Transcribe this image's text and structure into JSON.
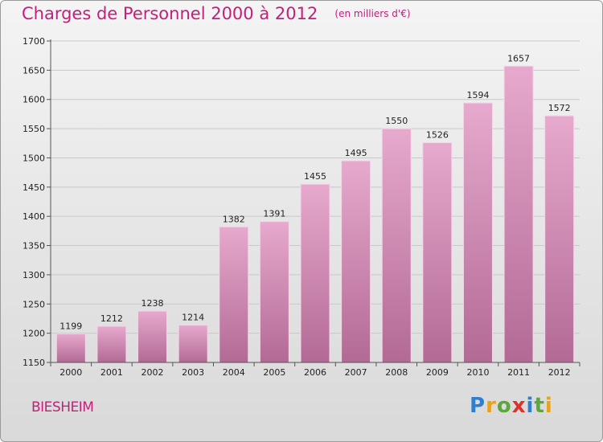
{
  "header": {
    "title": "Charges de Personnel 2000 à 2012",
    "subtitle": "(en milliers d'€)"
  },
  "footer": {
    "commune": "BIESHEIM",
    "logo_text": "Proxiti",
    "logo_letters": [
      {
        "ch": "P",
        "color": "#2f7fd0"
      },
      {
        "ch": "r",
        "color": "#e8a21c"
      },
      {
        "ch": "o",
        "color": "#5aa83b"
      },
      {
        "ch": "x",
        "color": "#d9342b"
      },
      {
        "ch": "i",
        "color": "#2f7fd0"
      },
      {
        "ch": "t",
        "color": "#5aa83b"
      },
      {
        "ch": "i",
        "color": "#e8a21c"
      }
    ]
  },
  "colors": {
    "accent": "#c2207a",
    "bar_top": "#e7a9cd",
    "bar_bottom": "#b26a95",
    "grid": "#c8c8c8",
    "axis": "#555555"
  },
  "chart_data": {
    "type": "bar",
    "title": "Charges de Personnel 2000 à 2012",
    "subtitle": "(en milliers d'€)",
    "xlabel": "",
    "ylabel": "",
    "categories": [
      "2000",
      "2001",
      "2002",
      "2003",
      "2004",
      "2005",
      "2006",
      "2007",
      "2008",
      "2009",
      "2010",
      "2011",
      "2012"
    ],
    "values": [
      1199,
      1212,
      1238,
      1214,
      1382,
      1391,
      1455,
      1495,
      1550,
      1526,
      1594,
      1657,
      1572
    ],
    "ylim": [
      1150,
      1700
    ],
    "yticks": [
      1150,
      1200,
      1250,
      1300,
      1350,
      1400,
      1450,
      1500,
      1550,
      1600,
      1650,
      1700
    ],
    "grid": true,
    "legend": "none"
  }
}
